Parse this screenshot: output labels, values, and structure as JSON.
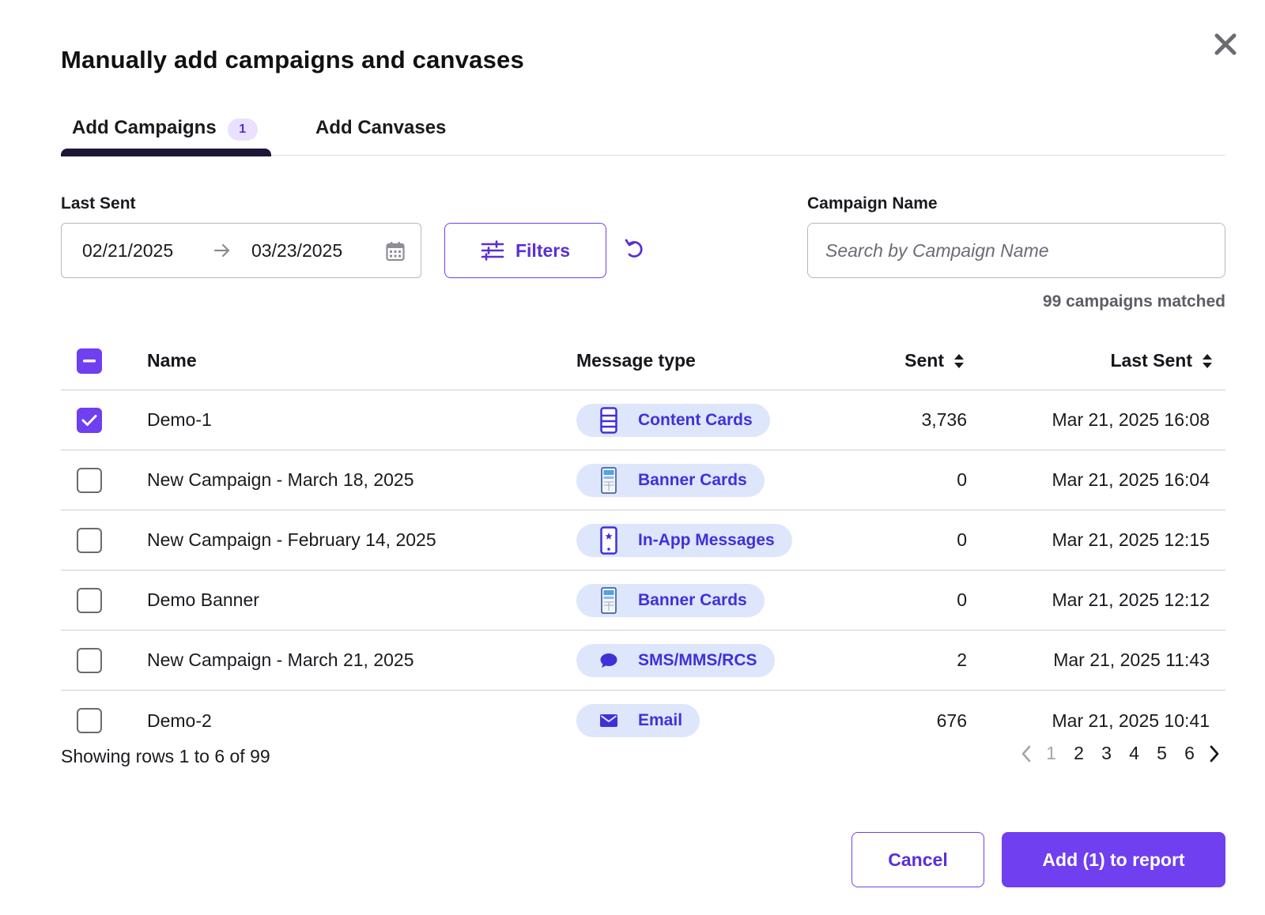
{
  "modal": {
    "title": "Manually add campaigns and canvases",
    "close_icon": "close-icon"
  },
  "tabs": [
    {
      "label": "Add Campaigns",
      "badge": "1",
      "active": true
    },
    {
      "label": "Add Canvases",
      "active": false
    }
  ],
  "filters": {
    "last_sent_label": "Last Sent",
    "start_date": "02/21/2025",
    "end_date": "03/23/2025",
    "filters_label": "Filters",
    "campaign_name_label": "Campaign Name",
    "search_placeholder": "Search by Campaign Name",
    "search_value": "",
    "matched_text": "99 campaigns matched"
  },
  "table": {
    "header_checkbox_state": "indeterminate",
    "columns": {
      "name": "Name",
      "message_type": "Message type",
      "sent": "Sent",
      "last_sent": "Last Sent"
    },
    "rows": [
      {
        "checked": true,
        "name": "Demo-1",
        "type": "Content Cards",
        "type_icon": "content-cards-icon",
        "sent": "3,736",
        "last_sent": "Mar 21, 2025 16:08"
      },
      {
        "checked": false,
        "name": "New Campaign - March 18, 2025",
        "type": "Banner Cards",
        "type_icon": "banner-cards-icon",
        "sent": "0",
        "last_sent": "Mar 21, 2025 16:04"
      },
      {
        "checked": false,
        "name": "New Campaign - February 14, 2025",
        "type": "In-App Messages",
        "type_icon": "in-app-messages-icon",
        "sent": "0",
        "last_sent": "Mar 21, 2025 12:15"
      },
      {
        "checked": false,
        "name": "Demo Banner",
        "type": "Banner Cards",
        "type_icon": "banner-cards-icon",
        "sent": "0",
        "last_sent": "Mar 21, 2025 12:12"
      },
      {
        "checked": false,
        "name": "New Campaign - March 21, 2025",
        "type": "SMS/MMS/RCS",
        "type_icon": "sms-bubble-icon",
        "sent": "2",
        "last_sent": "Mar 21, 2025 11:43"
      },
      {
        "checked": false,
        "name": "Demo-2",
        "type": "Email",
        "type_icon": "email-envelope-icon",
        "sent": "676",
        "last_sent": "Mar 21, 2025 10:41"
      }
    ]
  },
  "pagination": {
    "summary": "Showing rows 1 to 6 of 99",
    "pages": [
      "1",
      "2",
      "3",
      "4",
      "5",
      "6"
    ],
    "current_page": "1"
  },
  "actions": {
    "cancel_label": "Cancel",
    "add_label": "Add (1) to report"
  },
  "colors": {
    "accent": "#6f3ff0",
    "pill_bg": "#dde6fb",
    "pill_text": "#3f31d8",
    "tab_underline": "#1e1636",
    "badge_bg": "#e9e1fd"
  }
}
